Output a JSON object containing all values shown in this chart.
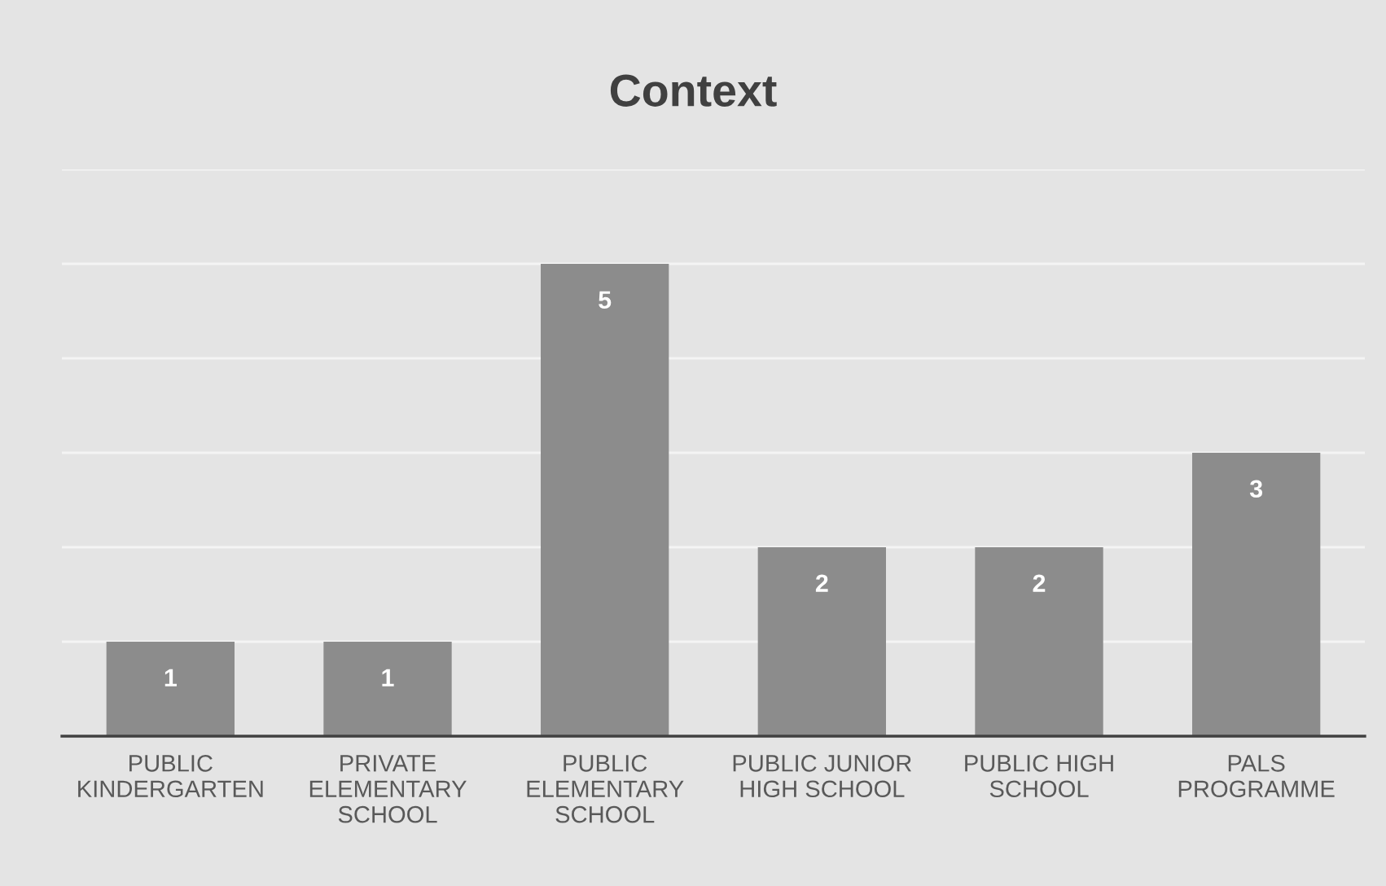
{
  "chart_data": {
    "type": "bar",
    "title": "Context",
    "categories": [
      "PUBLIC\nKINDERGARTEN",
      "PRIVATE\nELEMENTARY\nSCHOOL",
      "PUBLIC\nELEMENTARY\nSCHOOL",
      "PUBLIC JUNIOR\nHIGH SCHOOL",
      "PUBLIC HIGH\nSCHOOL",
      "PALS\nPROGRAMME"
    ],
    "values": [
      1,
      1,
      5,
      2,
      2,
      3
    ],
    "color": "#8c8c8c",
    "ylim": [
      0,
      6
    ],
    "yticks": [
      {
        "value": 0,
        "label": null
      },
      {
        "value": 1,
        "label": null
      },
      {
        "value": 2,
        "label": null
      },
      {
        "value": 3,
        "label": null
      },
      {
        "value": 4,
        "label": null
      },
      {
        "value": 5,
        "label": null
      },
      {
        "value": 6,
        "label": null
      }
    ],
    "grid": "y",
    "tick_labels": "x",
    "data_labels": true
  }
}
